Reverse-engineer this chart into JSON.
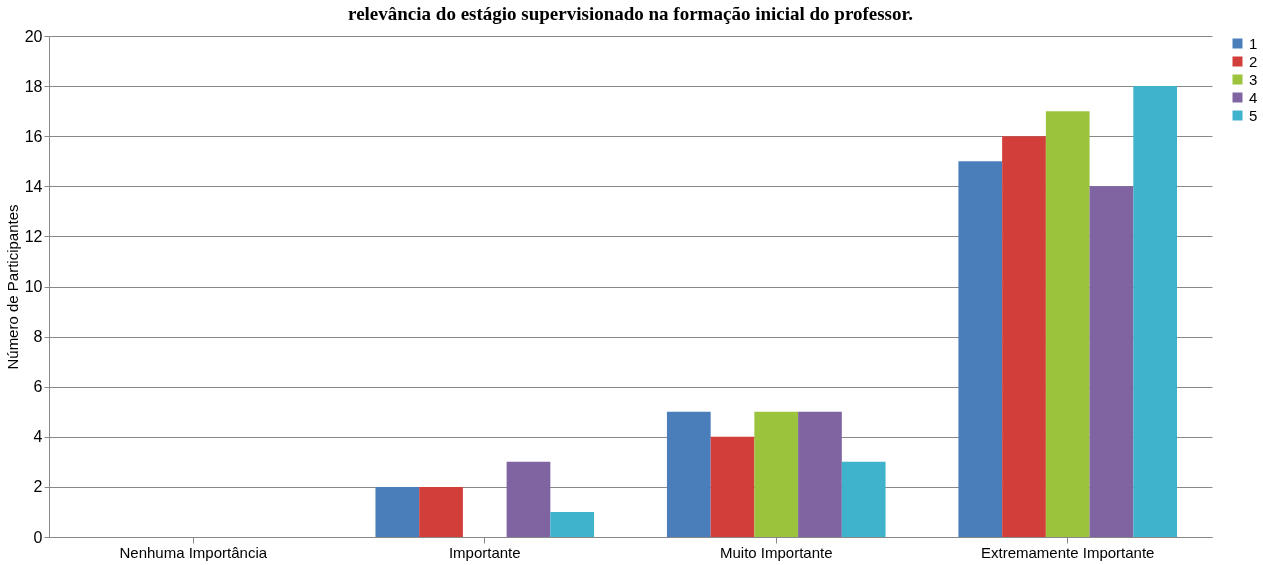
{
  "chart_data": {
    "type": "bar",
    "title": "relevância do estágio supervisionado na formação inicial do professor.",
    "ylabel": "Número de Participantes",
    "categories": [
      "Nenhuma Importância",
      "Importante",
      "Muito Importante",
      "Extremamente Importante"
    ],
    "series": [
      {
        "name": "1",
        "color": "#4a7ebb",
        "values": [
          0,
          2,
          5,
          15
        ]
      },
      {
        "name": "2",
        "color": "#d23f3b",
        "values": [
          0,
          2,
          4,
          16
        ]
      },
      {
        "name": "3",
        "color": "#9bc33c",
        "values": [
          0,
          0,
          5,
          17
        ]
      },
      {
        "name": "4",
        "color": "#8064a2",
        "values": [
          0,
          3,
          5,
          14
        ]
      },
      {
        "name": "5",
        "color": "#3fb3cc",
        "values": [
          0,
          1,
          3,
          18
        ]
      }
    ],
    "ylim": [
      0,
      20
    ],
    "yticks": [
      0,
      2,
      4,
      6,
      8,
      10,
      12,
      14,
      16,
      18,
      20
    ],
    "grid": "y",
    "legend": "right"
  }
}
